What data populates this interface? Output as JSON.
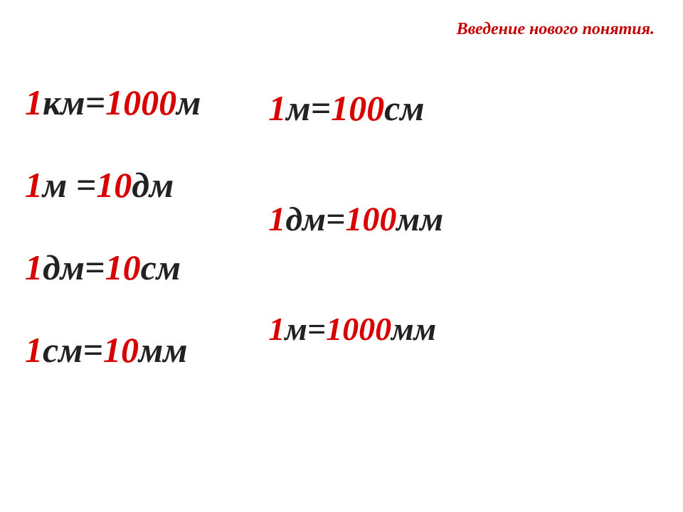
{
  "header": {
    "text": "Введение нового понятия."
  },
  "leftColumn": {
    "eq1": {
      "redLeft": "1",
      "blackMid": "км= ",
      "redVal": "1000",
      "blackUnit": " м"
    },
    "eq2": {
      "redLeft": "1",
      "blackMid": "м = ",
      "redVal": "10",
      "blackUnit": " дм"
    },
    "eq3": {
      "redLeft": "1",
      "blackMid": "дм= ",
      "redVal": "10",
      "blackUnit": " см"
    },
    "eq4": {
      "redLeft": "1",
      "blackMid": "см= ",
      "redVal": "10",
      "blackUnit": " мм"
    }
  },
  "rightColumn": {
    "eq1": {
      "redLeft": "1",
      "blackMid": "м= ",
      "redVal": "100",
      "blackUnit": "см"
    },
    "eq2": {
      "redLeft": "1",
      "blackMid": "дм=",
      "redVal": "100",
      "blackUnit": "мм"
    },
    "eq3": {
      "redLeft": "1",
      "blackMid": "м= ",
      "redVal": "1000",
      "blackUnit": "мм"
    }
  },
  "colors": {
    "red": "#d90000",
    "black": "#222222",
    "background": "#ffffff",
    "headerRed": "#c20000"
  },
  "typography": {
    "family": "Times New Roman",
    "style": "italic",
    "mainSize": 50,
    "headerSize": 24
  }
}
